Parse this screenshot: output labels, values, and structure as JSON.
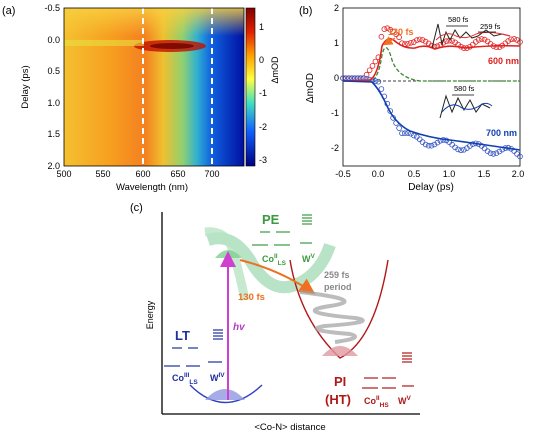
{
  "panel_a": {
    "label": "(a)",
    "xlabel": "Wavelength (nm)",
    "ylabel": "Delay (ps)",
    "colorbar_label": "ΔmOD",
    "xticks": [
      "500",
      "550",
      "600",
      "650",
      "700"
    ],
    "yticks": [
      "-0.5",
      "0.0",
      "0.5",
      "1.0",
      "1.5",
      "2.0"
    ],
    "cbar_ticks": [
      "1",
      "0",
      "-1",
      "-2",
      "-3"
    ],
    "dashed_lines_nm": [
      600,
      700
    ]
  },
  "panel_b": {
    "label": "(b)",
    "xlabel": "Delay (ps)",
    "ylabel": "ΔmOD",
    "xticks": [
      "-0.5",
      "0.0",
      "0.5",
      "1.0",
      "1.5",
      "2.0"
    ],
    "yticks": [
      "2",
      "1",
      "0",
      "-1",
      "-2"
    ],
    "annot_130": "130 fs",
    "annot_580_top": "580 fs",
    "annot_259": "259 fs",
    "annot_580_bottom": "580 fs",
    "label_600": "600 nm",
    "label_700": "700 nm"
  },
  "panel_c": {
    "label": "(c)",
    "ylabel": "Energy",
    "xlabel": "<Co-N> distance",
    "pe_label": "PE",
    "pe_co": "Co",
    "pe_co_sup": "II",
    "pe_co_sub": "LS",
    "pe_w": "W",
    "pe_w_sup": "V",
    "lt_label": "LT",
    "lt_co": "Co",
    "lt_co_sup": "III",
    "lt_co_sub": "LS",
    "lt_w": "W",
    "lt_w_sup": "IV",
    "pi_label": "PI",
    "ht_label": "(HT)",
    "pi_co": "Co",
    "pi_co_sup": "II",
    "pi_co_sub": "HS",
    "pi_w": "W",
    "pi_w_sup": "V",
    "hv_label": "hv",
    "fs130": "130 fs",
    "period_259": "259 fs",
    "period_word": "period"
  },
  "chart_data": [
    {
      "type": "heatmap",
      "title": "",
      "xlabel": "Wavelength (nm)",
      "ylabel": "Delay (ps)",
      "xlim": [
        500,
        745
      ],
      "ylim": [
        2.0,
        -0.5
      ],
      "colorbar_range": [
        -3,
        1.3
      ],
      "grid": false
    },
    {
      "type": "line",
      "xlabel": "Delay (ps)",
      "ylabel": "ΔmOD",
      "xlim": [
        -0.5,
        2.0
      ],
      "ylim": [
        -2.5,
        2.0
      ],
      "series": [
        {
          "name": "600 nm",
          "x": [
            -0.5,
            -0.2,
            0.0,
            0.05,
            0.1,
            0.2,
            0.3,
            0.5,
            0.7,
            1.0,
            1.5,
            2.0
          ],
          "values": [
            0,
            0,
            0.6,
            1.3,
            1.45,
            1.35,
            1.15,
            0.95,
            1.05,
            0.95,
            1.0,
            1.0
          ]
        },
        {
          "name": "700 nm",
          "x": [
            -0.5,
            -0.2,
            0.0,
            0.1,
            0.2,
            0.3,
            0.5,
            0.7,
            1.0,
            1.5,
            2.0
          ],
          "values": [
            0,
            0,
            -0.1,
            -0.6,
            -1.1,
            -1.45,
            -1.75,
            -1.8,
            -1.9,
            -2.0,
            -2.15
          ]
        }
      ]
    }
  ]
}
